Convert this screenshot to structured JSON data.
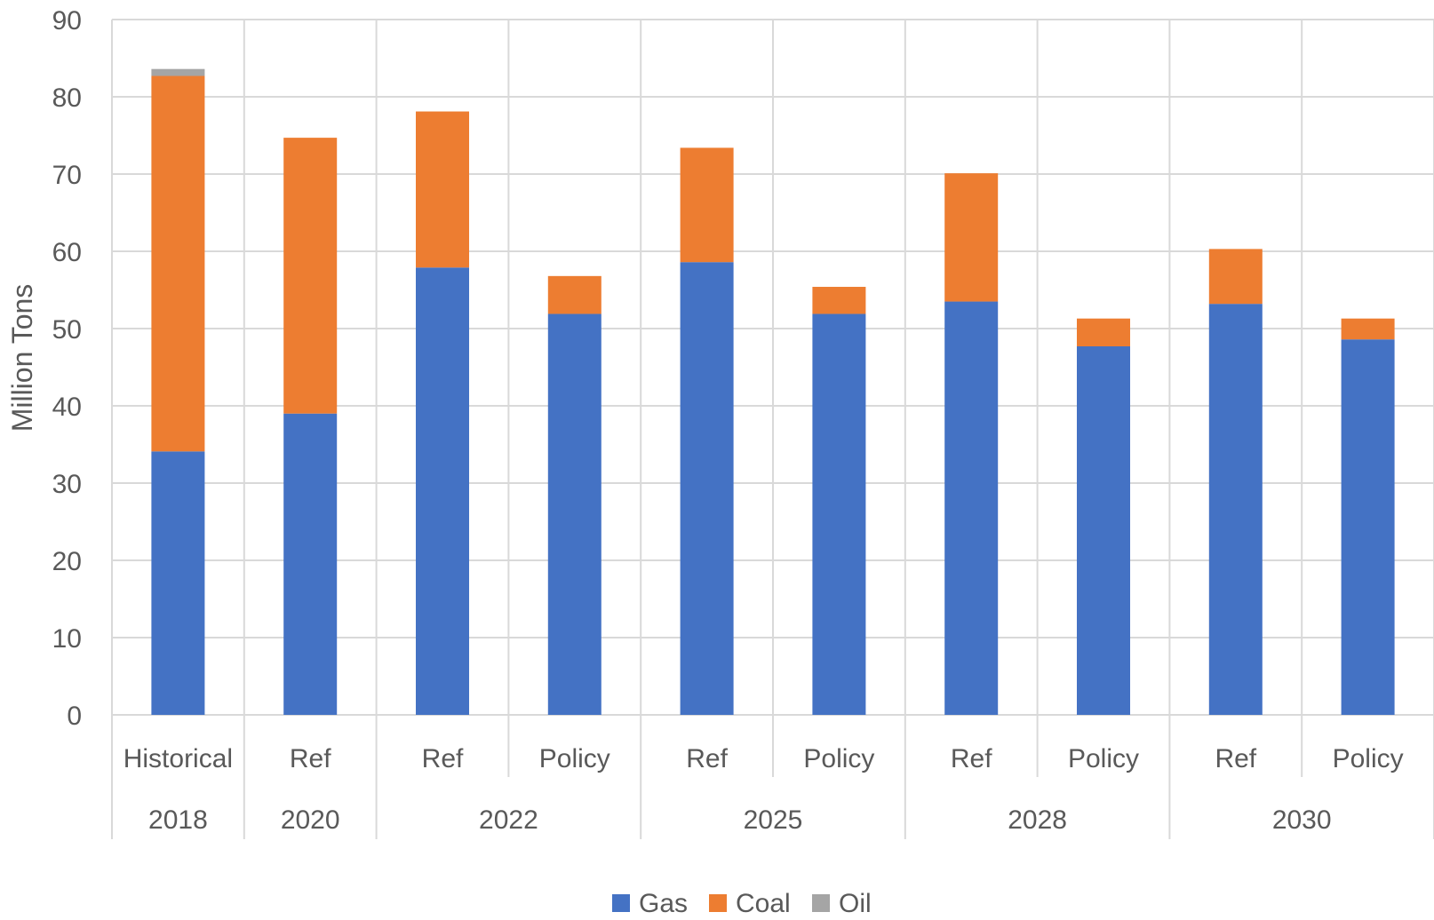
{
  "chart_data": {
    "type": "bar",
    "stacked": true,
    "title": "",
    "xlabel": "",
    "ylabel": "Million Tons",
    "ylim": [
      0,
      90
    ],
    "y_ticks": [
      0,
      10,
      20,
      30,
      40,
      50,
      60,
      70,
      80,
      90
    ],
    "grid": true,
    "legend_position": "bottom",
    "categories": [
      {
        "scenario": "Historical",
        "year": "2018"
      },
      {
        "scenario": "Ref",
        "year": "2020"
      },
      {
        "scenario": "Ref",
        "year": "2022"
      },
      {
        "scenario": "Policy",
        "year": "2022"
      },
      {
        "scenario": "Ref",
        "year": "2025"
      },
      {
        "scenario": "Policy",
        "year": "2025"
      },
      {
        "scenario": "Ref",
        "year": "2028"
      },
      {
        "scenario": "Policy",
        "year": "2028"
      },
      {
        "scenario": "Ref",
        "year": "2030"
      },
      {
        "scenario": "Policy",
        "year": "2030"
      }
    ],
    "year_groups": [
      {
        "label": "2018",
        "count": 1
      },
      {
        "label": "2020",
        "count": 1
      },
      {
        "label": "2022",
        "count": 2
      },
      {
        "label": "2025",
        "count": 2
      },
      {
        "label": "2028",
        "count": 2
      },
      {
        "label": "2030",
        "count": 2
      }
    ],
    "series": [
      {
        "name": "Gas",
        "color": "#4472C4",
        "values": [
          34.1,
          39.0,
          57.9,
          51.9,
          58.6,
          51.9,
          53.5,
          47.7,
          53.2,
          48.6
        ]
      },
      {
        "name": "Coal",
        "color": "#ED7D31",
        "values": [
          48.6,
          35.7,
          20.2,
          4.9,
          14.8,
          3.5,
          16.6,
          3.6,
          7.1,
          2.7
        ]
      },
      {
        "name": "Oil",
        "color": "#A5A5A5",
        "values": [
          0.9,
          0,
          0,
          0,
          0,
          0,
          0,
          0,
          0,
          0
        ]
      }
    ]
  }
}
